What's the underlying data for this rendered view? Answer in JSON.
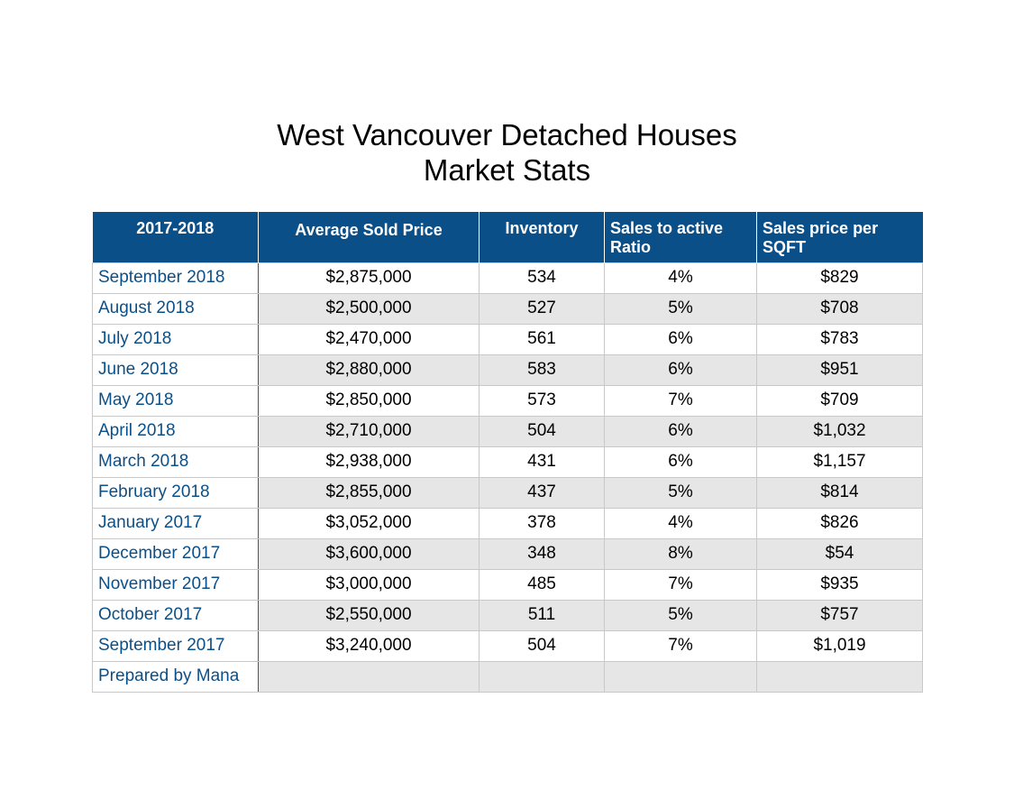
{
  "title": {
    "line1": "West Vancouver Detached Houses",
    "line2": "Market Stats"
  },
  "table": {
    "headers": [
      "2017-2018",
      "Average Sold Price",
      "Inventory",
      "Sales to active Ratio",
      "Sales price per SQFT"
    ],
    "rows": [
      [
        "September 2018",
        "$2,875,000",
        "534",
        "4%",
        "$829"
      ],
      [
        "August 2018",
        "$2,500,000",
        "527",
        "5%",
        "$708"
      ],
      [
        "July 2018",
        "$2,470,000",
        "561",
        "6%",
        "$783"
      ],
      [
        "June 2018",
        "$2,880,000",
        "583",
        "6%",
        "$951"
      ],
      [
        "May 2018",
        "$2,850,000",
        "573",
        "7%",
        "$709"
      ],
      [
        "April 2018",
        "$2,710,000",
        "504",
        "6%",
        "$1,032"
      ],
      [
        "March 2018",
        "$2,938,000",
        "431",
        "6%",
        "$1,157"
      ],
      [
        "February 2018",
        "$2,855,000",
        "437",
        "5%",
        "$814"
      ],
      [
        "January 2017",
        "$3,052,000",
        "378",
        "4%",
        "$826"
      ],
      [
        "December 2017",
        "$3,600,000",
        "348",
        "8%",
        "$54"
      ],
      [
        "November 2017",
        "$3,000,000",
        "485",
        "7%",
        "$935"
      ],
      [
        "October 2017",
        "$2,550,000",
        "511",
        "5%",
        "$757"
      ],
      [
        "September 2017",
        "$3,240,000",
        "504",
        "7%",
        "$1,019"
      ]
    ],
    "footer": "Prepared by Mana"
  },
  "colors": {
    "header_bg": "#0b4f88",
    "label_text": "#0b4f88",
    "stripe": "#e6e6e6"
  }
}
